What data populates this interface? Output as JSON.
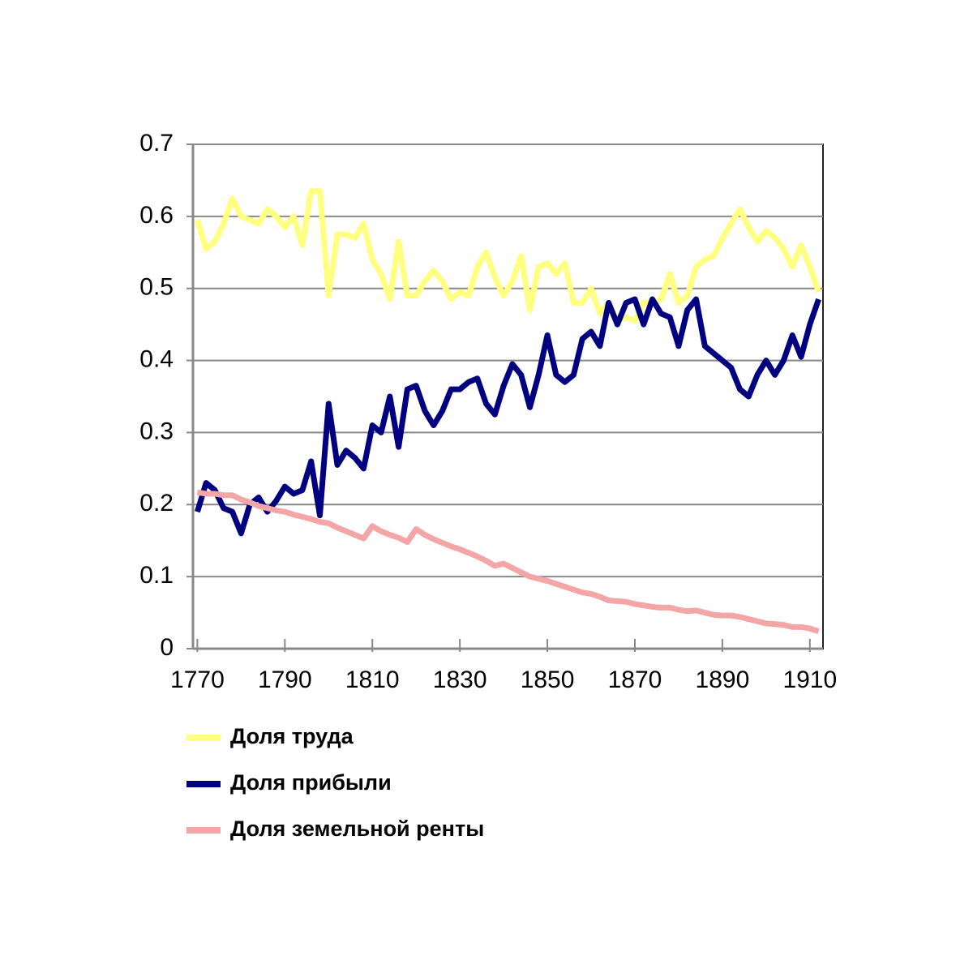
{
  "chart_data": {
    "type": "line",
    "x": [
      1770,
      1772,
      1774,
      1776,
      1778,
      1780,
      1782,
      1784,
      1786,
      1788,
      1790,
      1792,
      1794,
      1796,
      1798,
      1800,
      1802,
      1804,
      1806,
      1808,
      1810,
      1812,
      1814,
      1816,
      1818,
      1820,
      1822,
      1824,
      1826,
      1828,
      1830,
      1832,
      1834,
      1836,
      1838,
      1840,
      1842,
      1844,
      1846,
      1848,
      1850,
      1852,
      1854,
      1856,
      1858,
      1860,
      1862,
      1864,
      1866,
      1868,
      1870,
      1872,
      1874,
      1876,
      1878,
      1880,
      1882,
      1884,
      1886,
      1888,
      1890,
      1892,
      1894,
      1896,
      1898,
      1900,
      1902,
      1904,
      1906,
      1908,
      1910,
      1912
    ],
    "series": [
      {
        "name": "Доля труда",
        "color": "#ffff80",
        "values": [
          0.595,
          0.555,
          0.565,
          0.59,
          0.625,
          0.6,
          0.595,
          0.59,
          0.61,
          0.6,
          0.585,
          0.6,
          0.56,
          0.635,
          0.635,
          0.49,
          0.575,
          0.575,
          0.57,
          0.59,
          0.54,
          0.52,
          0.485,
          0.565,
          0.49,
          0.49,
          0.51,
          0.525,
          0.51,
          0.485,
          0.495,
          0.49,
          0.53,
          0.55,
          0.515,
          0.49,
          0.51,
          0.545,
          0.47,
          0.53,
          0.535,
          0.52,
          0.535,
          0.48,
          0.48,
          0.5,
          0.465,
          0.48,
          0.455,
          0.46,
          0.455,
          0.48,
          0.48,
          0.485,
          0.52,
          0.48,
          0.49,
          0.53,
          0.54,
          0.545,
          0.57,
          0.59,
          0.61,
          0.585,
          0.565,
          0.58,
          0.57,
          0.555,
          0.53,
          0.56,
          0.53,
          0.495
        ]
      },
      {
        "name": "Доля прибыли",
        "color": "#000080",
        "values": [
          0.19,
          0.23,
          0.22,
          0.195,
          0.19,
          0.16,
          0.2,
          0.21,
          0.19,
          0.205,
          0.225,
          0.215,
          0.22,
          0.26,
          0.185,
          0.34,
          0.255,
          0.275,
          0.265,
          0.25,
          0.31,
          0.3,
          0.35,
          0.28,
          0.36,
          0.365,
          0.33,
          0.31,
          0.33,
          0.36,
          0.36,
          0.37,
          0.375,
          0.34,
          0.325,
          0.365,
          0.395,
          0.38,
          0.335,
          0.38,
          0.435,
          0.38,
          0.37,
          0.38,
          0.43,
          0.44,
          0.42,
          0.48,
          0.45,
          0.48,
          0.485,
          0.45,
          0.485,
          0.465,
          0.46,
          0.42,
          0.47,
          0.485,
          0.42,
          0.41,
          0.4,
          0.39,
          0.36,
          0.35,
          0.38,
          0.4,
          0.38,
          0.4,
          0.435,
          0.405,
          0.45,
          0.485
        ]
      },
      {
        "name": "Доля земельной ренты",
        "color": "#f4a6a6",
        "values": [
          0.217,
          0.215,
          0.215,
          0.213,
          0.213,
          0.207,
          0.203,
          0.198,
          0.195,
          0.192,
          0.19,
          0.186,
          0.183,
          0.18,
          0.176,
          0.174,
          0.168,
          0.163,
          0.158,
          0.153,
          0.17,
          0.163,
          0.158,
          0.154,
          0.148,
          0.166,
          0.158,
          0.152,
          0.147,
          0.142,
          0.138,
          0.133,
          0.128,
          0.122,
          0.115,
          0.118,
          0.112,
          0.106,
          0.1,
          0.097,
          0.094,
          0.09,
          0.086,
          0.082,
          0.078,
          0.076,
          0.072,
          0.067,
          0.066,
          0.065,
          0.062,
          0.06,
          0.058,
          0.057,
          0.057,
          0.054,
          0.052,
          0.053,
          0.05,
          0.047,
          0.046,
          0.046,
          0.044,
          0.041,
          0.038,
          0.035,
          0.034,
          0.033,
          0.03,
          0.03,
          0.028,
          0.024
        ]
      }
    ],
    "xlim": [
      1769,
      1913
    ],
    "xticks": [
      1770,
      1790,
      1810,
      1830,
      1850,
      1870,
      1890,
      1910
    ],
    "ylim": [
      0,
      0.7
    ],
    "yticks": [
      0,
      0.1,
      0.2,
      0.3,
      0.4,
      0.5,
      0.6,
      0.7
    ],
    "grid": true
  }
}
